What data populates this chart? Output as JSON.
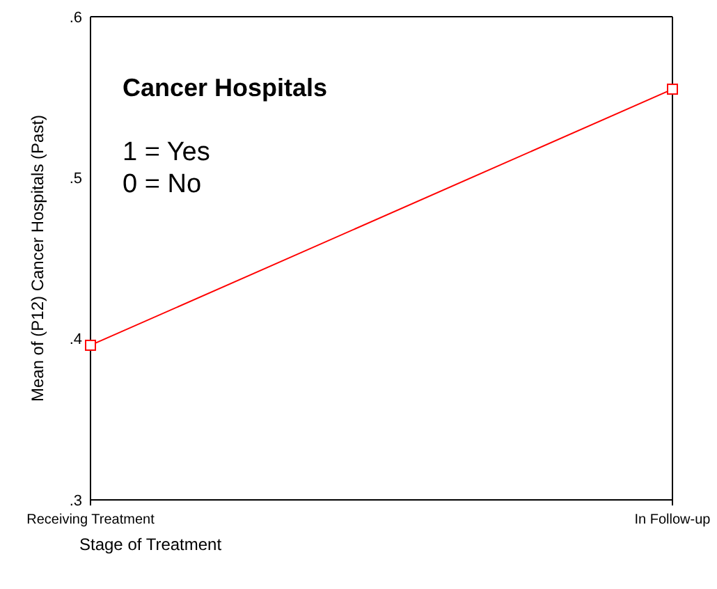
{
  "chart_data": {
    "type": "line",
    "categories": [
      "Receiving Treatment",
      "In Follow-up"
    ],
    "series": [
      {
        "color": "#ff0000",
        "values": [
          0.396,
          0.555
        ]
      }
    ],
    "xlabel": "Stage of Treatment",
    "ylabel": "Mean of (P12) Cancer Hospitals (Past)",
    "ylim": [
      0.3,
      0.6
    ],
    "yticks": [
      {
        "value": 0.3,
        "label": ".3"
      },
      {
        "value": 0.4,
        "label": ".4"
      },
      {
        "value": 0.5,
        "label": ".5"
      },
      {
        "value": 0.6,
        "label": ".6"
      }
    ],
    "annotations": [
      "Cancer Hospitals",
      "1 = Yes",
      "0 = No"
    ],
    "marker": "square"
  }
}
